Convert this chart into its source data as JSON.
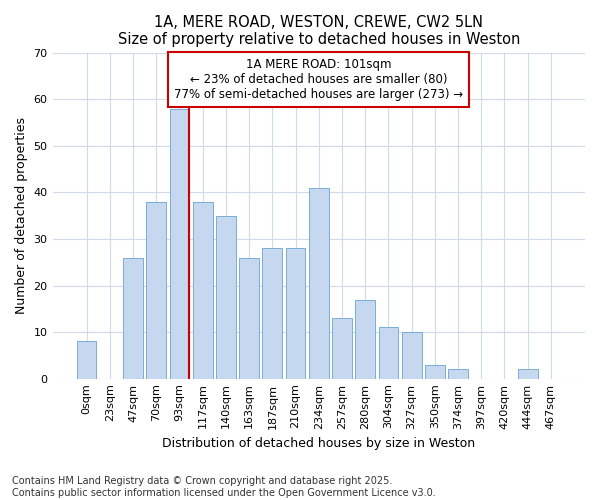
{
  "title_line1": "1A, MERE ROAD, WESTON, CREWE, CW2 5LN",
  "title_line2": "Size of property relative to detached houses in Weston",
  "xlabel": "Distribution of detached houses by size in Weston",
  "ylabel": "Number of detached properties",
  "bar_color": "#c5d8f0",
  "bar_edge_color": "#7aadd4",
  "background_color": "#ffffff",
  "grid_color": "#d0daea",
  "categories": [
    "0sqm",
    "23sqm",
    "47sqm",
    "70sqm",
    "93sqm",
    "117sqm",
    "140sqm",
    "163sqm",
    "187sqm",
    "210sqm",
    "234sqm",
    "257sqm",
    "280sqm",
    "304sqm",
    "327sqm",
    "350sqm",
    "374sqm",
    "397sqm",
    "420sqm",
    "444sqm",
    "467sqm"
  ],
  "values": [
    8,
    0,
    26,
    38,
    58,
    38,
    35,
    26,
    28,
    28,
    41,
    13,
    17,
    11,
    10,
    3,
    2,
    0,
    0,
    2,
    0
  ],
  "ylim": [
    0,
    70
  ],
  "yticks": [
    0,
    10,
    20,
    30,
    40,
    50,
    60,
    70
  ],
  "vline_color": "#cc0000",
  "annotation_text": "1A MERE ROAD: 101sqm\n← 23% of detached houses are smaller (80)\n77% of semi-detached houses are larger (273) →",
  "annotation_box_color": "#ffffff",
  "annotation_box_edge": "#cc0000",
  "footer_line1": "Contains HM Land Registry data © Crown copyright and database right 2025.",
  "footer_line2": "Contains public sector information licensed under the Open Government Licence v3.0.",
  "title_fontsize": 10.5,
  "subtitle_fontsize": 9.5,
  "tick_fontsize": 8,
  "ylabel_fontsize": 9,
  "xlabel_fontsize": 9,
  "footer_fontsize": 7,
  "annotation_fontsize": 8.5
}
